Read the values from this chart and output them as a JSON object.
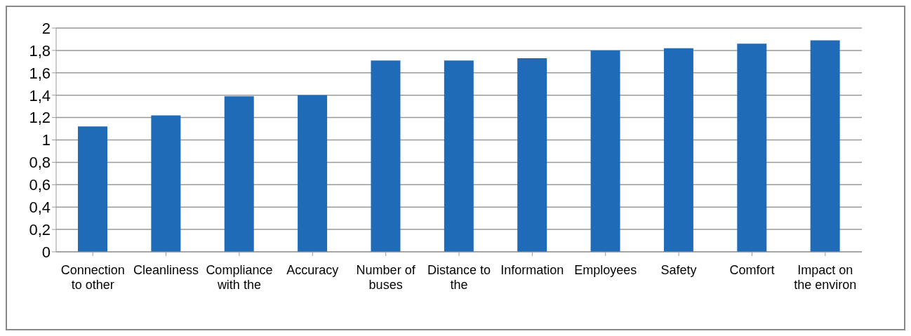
{
  "chart_data": {
    "type": "bar",
    "categories": [
      "Connection to other",
      "Cleanliness",
      "Compliance with the",
      "Accuracy",
      "Number of buses",
      "Distance to the",
      "Information",
      "Employees",
      "Safety",
      "Comfort",
      "Impact on the environ"
    ],
    "values": [
      1.12,
      1.22,
      1.39,
      1.4,
      1.71,
      1.71,
      1.73,
      1.8,
      1.82,
      1.86,
      1.89
    ],
    "color": "#1f6bb8",
    "ylim": [
      0,
      2
    ],
    "yticks": [
      0,
      {
        "value": 0.2,
        "label": "0,2"
      },
      {
        "value": 0.4,
        "label": "0,4"
      },
      {
        "value": 0.6,
        "label": "0,6"
      },
      {
        "value": 0.8,
        "label": "0,8"
      },
      1,
      {
        "value": 1.2,
        "label": "1,2"
      },
      {
        "value": 1.4,
        "label": "1,4"
      },
      {
        "value": 1.6,
        "label": "1,6"
      },
      {
        "value": 1.8,
        "label": "1,8"
      },
      2
    ],
    "grid": "y",
    "legend": false
  }
}
